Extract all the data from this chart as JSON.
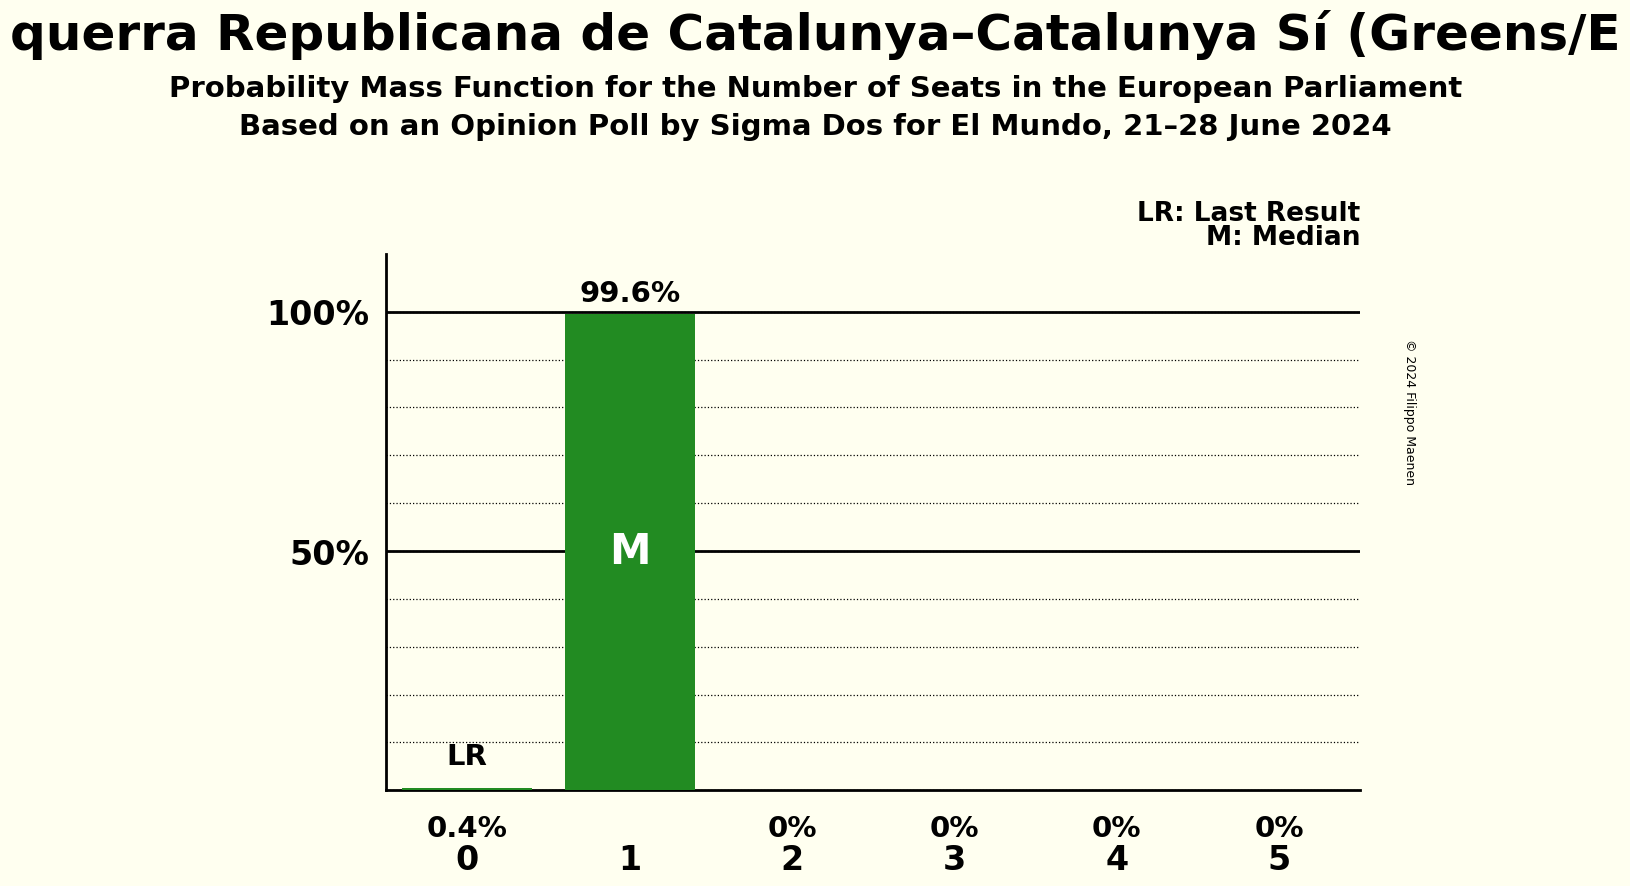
{
  "title_party": "querra Republicana de Catalunya–Catalunya Sí (Greens/E",
  "title_line1": "Probability Mass Function for the Number of Seats in the European Parliament",
  "title_line2": "Based on an Opinion Poll by Sigma Dos for El Mundo, 21–28 June 2024",
  "copyright": "© 2024 Filippo Maenen",
  "categories": [
    0,
    1,
    2,
    3,
    4,
    5
  ],
  "values": [
    0.004,
    0.996,
    0.0,
    0.0,
    0.0,
    0.0
  ],
  "bar_color": "#228B22",
  "background_color": "#FFFFF0",
  "median_bar": 1,
  "last_result_bar": 0,
  "bar_labels": [
    "0.4%",
    "99.6%",
    "0%",
    "0%",
    "0%",
    "0%"
  ],
  "legend_lr": "LR: Last Result",
  "legend_m": "M: Median",
  "ylim": [
    0,
    1.12
  ],
  "xlim": [
    -0.5,
    5.5
  ]
}
